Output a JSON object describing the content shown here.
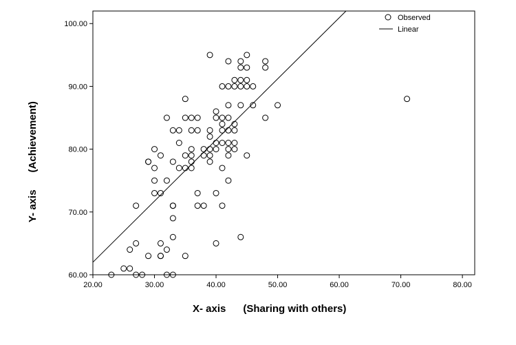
{
  "chart_data": {
    "type": "scatter",
    "xlabel": "X- axis      (Sharing with others)",
    "ylabel": "Y- axis      (Achievement)",
    "xlim": [
      20,
      82
    ],
    "ylim": [
      60,
      102
    ],
    "x_ticks": [
      "20.00",
      "30.00",
      "40.00",
      "50.00",
      "60.00",
      "70.00",
      "80.00"
    ],
    "y_ticks": [
      "60.00",
      "70.00",
      "80.00",
      "90.00",
      "100.00"
    ],
    "grid": false,
    "legend_position": "top-right",
    "legend": {
      "observed": "Observed",
      "linear": "Linear"
    },
    "fit_line": {
      "slope": 0.9733,
      "intercept": 42.53
    },
    "points": [
      [
        23,
        60
      ],
      [
        25,
        61
      ],
      [
        26,
        61
      ],
      [
        27,
        60
      ],
      [
        28,
        60
      ],
      [
        26,
        64
      ],
      [
        27,
        65
      ],
      [
        27,
        71
      ],
      [
        29,
        63
      ],
      [
        29,
        78
      ],
      [
        29,
        78
      ],
      [
        30,
        80
      ],
      [
        30,
        77
      ],
      [
        30,
        75
      ],
      [
        30,
        73
      ],
      [
        31,
        79
      ],
      [
        31,
        73
      ],
      [
        31,
        65
      ],
      [
        31,
        63
      ],
      [
        31,
        63
      ],
      [
        32,
        85
      ],
      [
        32,
        75
      ],
      [
        32,
        64
      ],
      [
        32,
        60
      ],
      [
        33,
        83
      ],
      [
        33,
        78
      ],
      [
        33,
        71
      ],
      [
        33,
        71
      ],
      [
        33,
        69
      ],
      [
        33,
        66
      ],
      [
        33,
        60
      ],
      [
        34,
        83
      ],
      [
        34,
        81
      ],
      [
        34,
        77
      ],
      [
        35,
        88
      ],
      [
        35,
        85
      ],
      [
        35,
        79
      ],
      [
        35,
        77
      ],
      [
        35,
        63
      ],
      [
        36,
        85
      ],
      [
        36,
        83
      ],
      [
        36,
        80
      ],
      [
        36,
        79
      ],
      [
        36,
        78
      ],
      [
        36,
        77
      ],
      [
        37,
        85
      ],
      [
        37,
        83
      ],
      [
        37,
        73
      ],
      [
        37,
        71
      ],
      [
        38,
        80
      ],
      [
        38,
        79
      ],
      [
        38,
        71
      ],
      [
        39,
        95
      ],
      [
        39,
        83
      ],
      [
        39,
        82
      ],
      [
        39,
        80
      ],
      [
        39,
        79
      ],
      [
        39,
        78
      ],
      [
        40,
        86
      ],
      [
        40,
        85
      ],
      [
        40,
        81
      ],
      [
        40,
        80
      ],
      [
        40,
        73
      ],
      [
        40,
        65
      ],
      [
        41,
        90
      ],
      [
        41,
        85
      ],
      [
        41,
        84
      ],
      [
        41,
        83
      ],
      [
        41,
        81
      ],
      [
        41,
        77
      ],
      [
        41,
        71
      ],
      [
        42,
        94
      ],
      [
        42,
        90
      ],
      [
        42,
        87
      ],
      [
        42,
        85
      ],
      [
        42,
        83
      ],
      [
        42,
        81
      ],
      [
        42,
        80
      ],
      [
        42,
        79
      ],
      [
        42,
        75
      ],
      [
        43,
        91
      ],
      [
        43,
        90
      ],
      [
        43,
        84
      ],
      [
        43,
        83
      ],
      [
        43,
        81
      ],
      [
        43,
        80
      ],
      [
        44,
        94
      ],
      [
        44,
        93
      ],
      [
        44,
        91
      ],
      [
        44,
        90
      ],
      [
        44,
        87
      ],
      [
        44,
        66
      ],
      [
        45,
        95
      ],
      [
        45,
        93
      ],
      [
        45,
        91
      ],
      [
        45,
        90
      ],
      [
        45,
        79
      ],
      [
        46,
        90
      ],
      [
        46,
        87
      ],
      [
        48,
        94
      ],
      [
        48,
        93
      ],
      [
        48,
        85
      ],
      [
        50,
        87
      ],
      [
        71,
        88
      ]
    ]
  }
}
